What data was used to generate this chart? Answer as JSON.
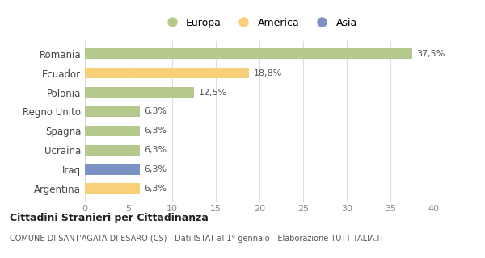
{
  "categories": [
    "Romania",
    "Ecuador",
    "Polonia",
    "Regno Unito",
    "Spagna",
    "Ucraina",
    "Iraq",
    "Argentina"
  ],
  "values": [
    37.5,
    18.8,
    12.5,
    6.3,
    6.3,
    6.3,
    6.3,
    6.3
  ],
  "colors": [
    "#b5c98e",
    "#f9d07a",
    "#b5c98e",
    "#b5c98e",
    "#b5c98e",
    "#b5c98e",
    "#7b93c4",
    "#f9d07a"
  ],
  "labels": [
    "37,5%",
    "18,8%",
    "12,5%",
    "6,3%",
    "6,3%",
    "6,3%",
    "6,3%",
    "6,3%"
  ],
  "legend": [
    {
      "label": "Europa",
      "color": "#b5c98e"
    },
    {
      "label": "America",
      "color": "#f9d07a"
    },
    {
      "label": "Asia",
      "color": "#7b93c4"
    }
  ],
  "xlim": [
    0,
    40
  ],
  "xticks": [
    0,
    5,
    10,
    15,
    20,
    25,
    30,
    35,
    40
  ],
  "title": "Cittadini Stranieri per Cittadinanza",
  "subtitle": "COMUNE DI SANT'AGATA DI ESARO (CS) - Dati ISTAT al 1° gennaio - Elaborazione TUTTITALIA.IT",
  "background_color": "#ffffff",
  "grid_color": "#dddddd",
  "bar_height": 0.55
}
